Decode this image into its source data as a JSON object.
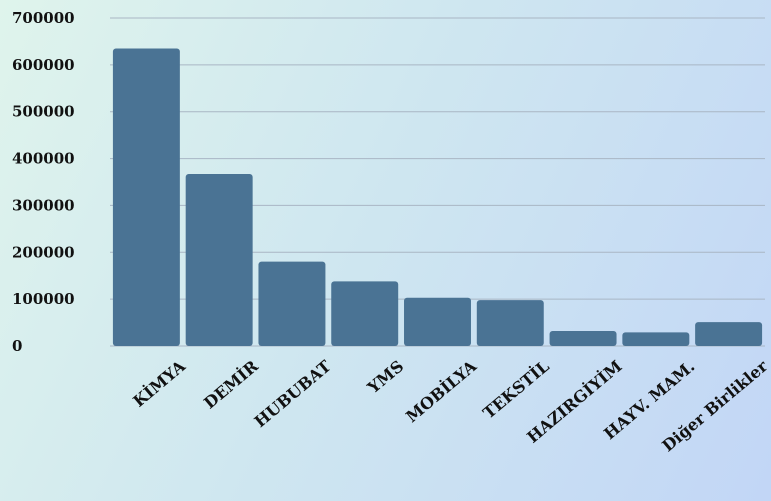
{
  "chart_data": {
    "type": "bar",
    "title": "",
    "xlabel": "",
    "ylabel": "",
    "categories": [
      "KİMYA",
      "DEMİR",
      "HUBUBAT",
      "YMS",
      "MOBİLYA",
      "TEKSTİL",
      "HAZIRGİYİM",
      "HAYV. MAM.",
      "Diğer Birlikler"
    ],
    "values": [
      635000,
      367000,
      180000,
      138000,
      103000,
      98000,
      32000,
      29000,
      51000
    ],
    "ylim": [
      0,
      700000
    ],
    "yticks": [
      "0",
      "100000",
      "200000",
      "300000",
      "400000",
      "500000",
      "600000",
      "700000"
    ],
    "grid": true,
    "legend": "none",
    "bar_color": "#4a7394"
  }
}
